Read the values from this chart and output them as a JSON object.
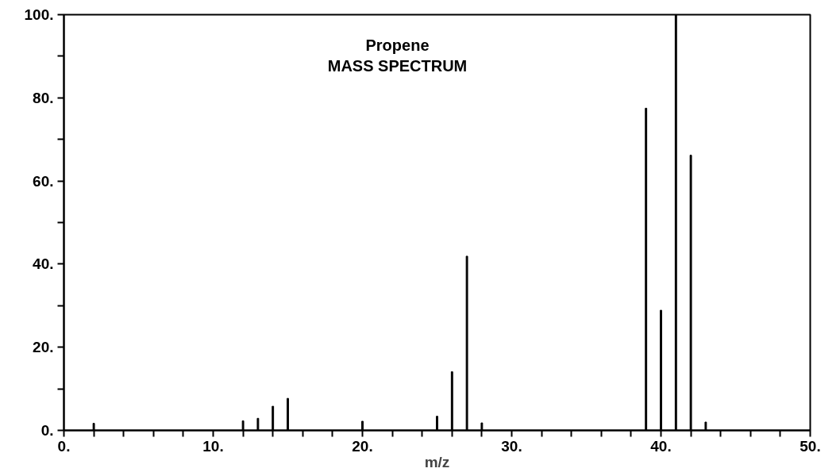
{
  "chart_data": {
    "type": "bar",
    "title": "Propene",
    "subtitle": "MASS SPECTRUM",
    "xlabel": "m/z",
    "x": [
      2,
      12,
      13,
      14,
      15,
      20,
      25,
      26,
      27,
      28,
      39,
      40,
      41,
      42,
      43
    ],
    "values": [
      1.7,
      2.3,
      2.9,
      5.8,
      7.7,
      2.2,
      3.4,
      14.1,
      41.9,
      1.8,
      77.5,
      28.9,
      100,
      66.2,
      2.0
    ],
    "color": "#000000",
    "xlim": [
      0,
      50
    ],
    "xticks": [
      {
        "value": 0,
        "label": "0."
      },
      {
        "value": 2,
        "label": null
      },
      {
        "value": 4,
        "label": null
      },
      {
        "value": 6,
        "label": null
      },
      {
        "value": 8,
        "label": null
      },
      {
        "value": 10,
        "label": "10."
      },
      {
        "value": 12,
        "label": null
      },
      {
        "value": 14,
        "label": null
      },
      {
        "value": 16,
        "label": null
      },
      {
        "value": 18,
        "label": null
      },
      {
        "value": 20,
        "label": "20."
      },
      {
        "value": 22,
        "label": null
      },
      {
        "value": 24,
        "label": null
      },
      {
        "value": 26,
        "label": null
      },
      {
        "value": 28,
        "label": null
      },
      {
        "value": 30,
        "label": "30."
      },
      {
        "value": 32,
        "label": null
      },
      {
        "value": 34,
        "label": null
      },
      {
        "value": 36,
        "label": null
      },
      {
        "value": 38,
        "label": null
      },
      {
        "value": 40,
        "label": "40."
      },
      {
        "value": 42,
        "label": null
      },
      {
        "value": 44,
        "label": null
      },
      {
        "value": 46,
        "label": null
      },
      {
        "value": 48,
        "label": null
      },
      {
        "value": 50,
        "label": "50."
      }
    ],
    "ylim": [
      0,
      100
    ],
    "yticks": [
      {
        "value": 0,
        "label": "0."
      },
      {
        "value": 10,
        "label": null
      },
      {
        "value": 20,
        "label": "20."
      },
      {
        "value": 30,
        "label": null
      },
      {
        "value": 40,
        "label": "40."
      },
      {
        "value": 50,
        "label": null
      },
      {
        "value": 60,
        "label": "60."
      },
      {
        "value": 70,
        "label": null
      },
      {
        "value": 80,
        "label": "80."
      },
      {
        "value": 90,
        "label": null
      },
      {
        "value": 100,
        "label": "100."
      }
    ],
    "grid": false
  }
}
